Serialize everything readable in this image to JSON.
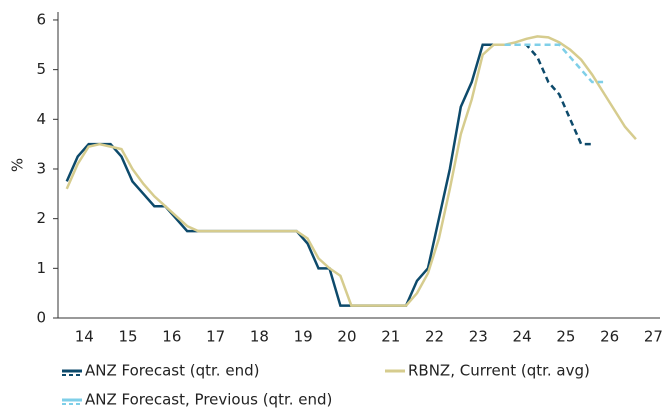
{
  "chart_data": {
    "type": "line",
    "y_label": "%",
    "xlim": [
      13.4,
      27.15
    ],
    "ylim": [
      0,
      6.1
    ],
    "xticks": [
      14,
      15,
      16,
      17,
      18,
      19,
      20,
      21,
      22,
      23,
      24,
      25,
      26,
      27
    ],
    "yticks": [
      0,
      1,
      2,
      3,
      4,
      5,
      6
    ],
    "legend": "bottom",
    "forecast_start": 23.6,
    "series": [
      {
        "name": "ANZ Forecast (qtr. end)",
        "color": "#0d4a6b",
        "style": "solid-then-dashed",
        "x": [
          13.6,
          13.85,
          14.1,
          14.35,
          14.6,
          14.85,
          15.1,
          15.35,
          15.6,
          15.85,
          16.1,
          16.35,
          16.6,
          16.85,
          17.1,
          17.35,
          17.6,
          17.85,
          18.1,
          18.35,
          18.6,
          18.85,
          19.1,
          19.35,
          19.6,
          19.85,
          20.1,
          20.35,
          20.6,
          20.85,
          21.1,
          21.35,
          21.6,
          21.85,
          22.1,
          22.35,
          22.6,
          22.85,
          23.1,
          23.35,
          23.6,
          23.85,
          24.1,
          24.35,
          24.6,
          24.85,
          25.1,
          25.35,
          25.6
        ],
        "values": [
          2.75,
          3.25,
          3.5,
          3.5,
          3.5,
          3.25,
          2.75,
          2.5,
          2.25,
          2.25,
          2.0,
          1.75,
          1.75,
          1.75,
          1.75,
          1.75,
          1.75,
          1.75,
          1.75,
          1.75,
          1.75,
          1.75,
          1.5,
          1.0,
          1.0,
          0.25,
          0.25,
          0.25,
          0.25,
          0.25,
          0.25,
          0.25,
          0.75,
          1.0,
          2.0,
          3.0,
          4.25,
          4.75,
          5.5,
          5.5,
          5.5,
          5.5,
          5.5,
          5.25,
          4.75,
          4.5,
          4.0,
          3.5,
          3.5
        ]
      },
      {
        "name": "RBNZ, Current (qtr. avg)",
        "color": "#d6cc8e",
        "style": "solid",
        "x": [
          13.6,
          13.85,
          14.1,
          14.35,
          14.6,
          14.85,
          15.1,
          15.35,
          15.6,
          15.85,
          16.1,
          16.35,
          16.6,
          16.85,
          17.1,
          17.35,
          17.6,
          17.85,
          18.1,
          18.35,
          18.6,
          18.85,
          19.1,
          19.35,
          19.6,
          19.85,
          20.1,
          20.35,
          20.6,
          20.85,
          21.1,
          21.35,
          21.6,
          21.85,
          22.1,
          22.35,
          22.6,
          22.85,
          23.1,
          23.35,
          23.6,
          23.85,
          24.1,
          24.35,
          24.6,
          24.85,
          25.1,
          25.35,
          25.6,
          25.85,
          26.1,
          26.35,
          26.6
        ],
        "values": [
          2.6,
          3.1,
          3.45,
          3.5,
          3.45,
          3.4,
          3.0,
          2.7,
          2.45,
          2.25,
          2.05,
          1.85,
          1.75,
          1.75,
          1.75,
          1.75,
          1.75,
          1.75,
          1.75,
          1.75,
          1.75,
          1.75,
          1.6,
          1.2,
          1.0,
          0.85,
          0.25,
          0.25,
          0.25,
          0.25,
          0.25,
          0.25,
          0.5,
          0.9,
          1.6,
          2.6,
          3.7,
          4.4,
          5.3,
          5.5,
          5.5,
          5.55,
          5.62,
          5.67,
          5.65,
          5.55,
          5.4,
          5.2,
          4.9,
          4.55,
          4.2,
          3.85,
          3.6
        ]
      },
      {
        "name": "ANZ Forecast, Previous (qtr. end)",
        "color": "#7fcfe8",
        "style": "dashed",
        "x": [
          23.6,
          23.85,
          24.1,
          24.35,
          24.6,
          24.85,
          25.1,
          25.35,
          25.6,
          25.85
        ],
        "values": [
          5.5,
          5.5,
          5.5,
          5.5,
          5.5,
          5.5,
          5.25,
          5.0,
          4.75,
          4.75
        ]
      }
    ]
  }
}
